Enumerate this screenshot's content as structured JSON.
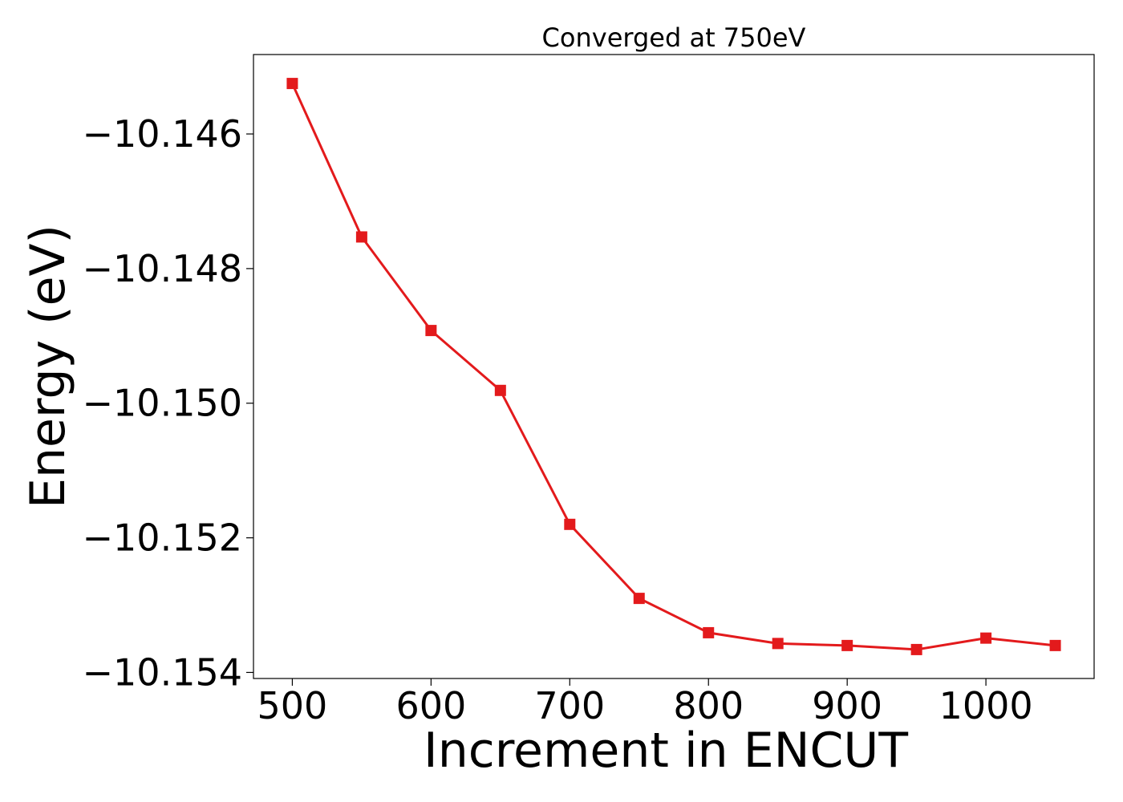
{
  "chart_data": {
    "type": "line",
    "title": "Converged at 750eV",
    "xlabel": "Increment in ENCUT",
    "ylabel": "Energy (eV)",
    "x": [
      500,
      550,
      600,
      650,
      700,
      750,
      800,
      850,
      900,
      950,
      1000,
      1050
    ],
    "series": [
      {
        "values": [
          -10.14525,
          -10.14753,
          -10.14892,
          -10.14981,
          -10.1518,
          -10.1529,
          -10.15341,
          -10.15357,
          -10.1536,
          -10.15366,
          -10.15349,
          -10.1536
        ],
        "color": "#e31a1c",
        "marker": "square"
      }
    ],
    "xlim": [
      472,
      1078
    ],
    "ylim": [
      -10.15409,
      -10.14482
    ],
    "xticks": [
      500,
      600,
      700,
      800,
      900,
      1000
    ],
    "xtick_labels": [
      "500",
      "600",
      "700",
      "800",
      "900",
      "1000"
    ],
    "yticks": [
      -10.146,
      -10.148,
      -10.15,
      -10.152,
      -10.154
    ],
    "ytick_labels": [
      "−10.146",
      "−10.148",
      "−10.150",
      "−10.152",
      "−10.154"
    ],
    "grid": false,
    "legend": "none"
  }
}
